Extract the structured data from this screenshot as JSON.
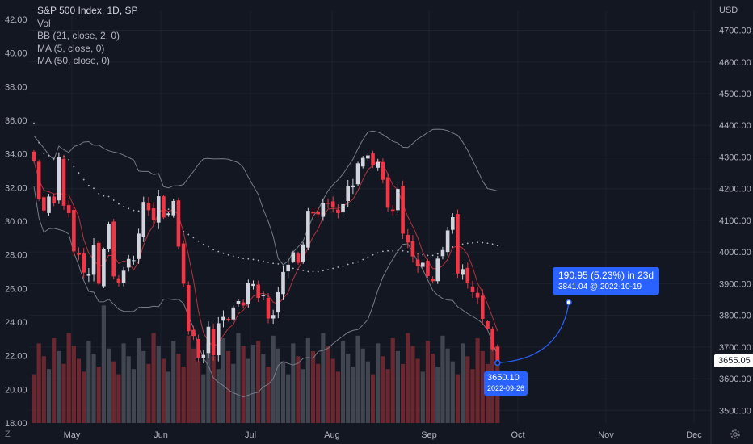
{
  "legend": {
    "title": "S&P 500 Index, 1D, SP",
    "vol": "Vol",
    "bb": "BB (21, close, 2, 0)",
    "ma5": "MA (5, close, 0)",
    "ma50": "MA (50, close, 0)"
  },
  "timezone_label": "Z",
  "currency_label": "USD",
  "current_price": "3655.05",
  "measure": {
    "main": "190.95 (5.23%) in 23d",
    "sub": "3841.04 @ 2022-10-19",
    "start_price": "3650.10",
    "start_date": "2022-09-26"
  },
  "colors": {
    "up": "#d1d4dc",
    "down": "#f23645",
    "ma5": "#b2323c",
    "bands": "#787b86",
    "ma50": "#b2b5be",
    "accent": "#2962ff",
    "grid": "#1e222d"
  },
  "icons": {
    "settings": "gear-icon"
  },
  "chart_data": {
    "type": "candlestick",
    "title": "S&P 500 Index, 1D, SP",
    "x_ticks": [
      "May",
      "Jun",
      "Jul",
      "Aug",
      "Sep",
      "Oct",
      "Nov",
      "Dec"
    ],
    "price_axis": {
      "ticks": [
        3500,
        3600,
        3700,
        3800,
        3900,
        4000,
        4100,
        4200,
        4300,
        4400,
        4500,
        4600,
        4700
      ],
      "range": [
        3460,
        4760
      ]
    },
    "volume_axis": {
      "ticks": [
        18,
        20,
        22,
        24,
        26,
        28,
        30,
        32,
        34,
        36,
        38,
        40,
        42
      ],
      "range": [
        18,
        42
      ]
    },
    "grid": true,
    "closes": [
      4287,
      4167,
      4131,
      4175,
      4155,
      4300,
      4146,
      4123,
      4002,
      3991,
      3935,
      3930,
      4023,
      3900,
      4008,
      4088,
      3923,
      3901,
      3941,
      3978,
      3974,
      4058,
      4158,
      4132,
      4101,
      4176,
      4109,
      4122,
      4161,
      4017,
      3900,
      3750,
      3735,
      3666,
      3675,
      3764,
      3674,
      3775,
      3795,
      3785,
      3825,
      3845,
      3831,
      3903,
      3899,
      3855,
      3863,
      3790,
      3801,
      3873,
      3937,
      3960,
      3999,
      3966,
      4024,
      4130,
      4122,
      4119,
      4155,
      4152,
      4140,
      4123,
      4151,
      4208,
      4210,
      4280,
      4297,
      4305,
      4274,
      4284,
      4228,
      4140,
      4130,
      4199,
      4058,
      4030,
      3986,
      3955,
      3966,
      3924,
      3908,
      3979,
      4006,
      4068,
      4110,
      3932,
      3946,
      3901,
      3873,
      3856,
      3789,
      3758,
      3693,
      3655
    ]
  }
}
